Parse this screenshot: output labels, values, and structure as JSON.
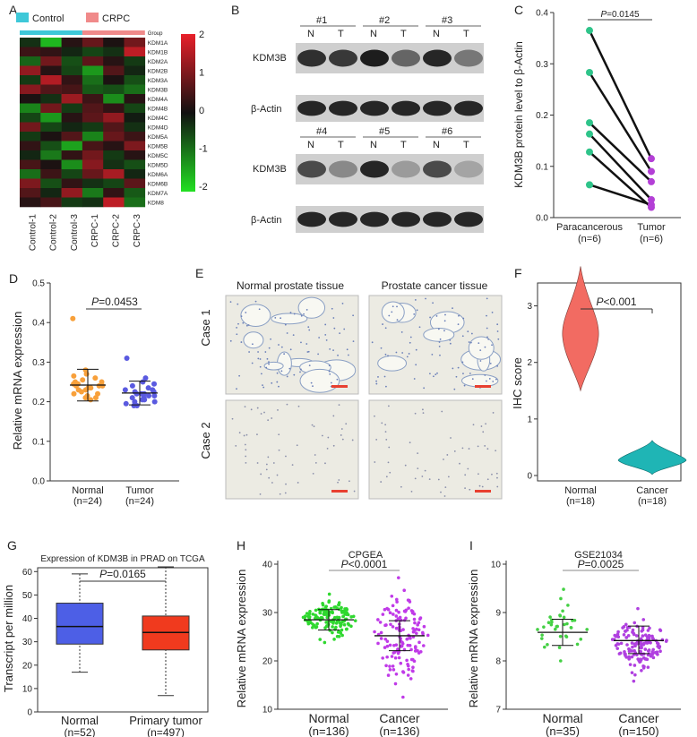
{
  "panels": [
    "A",
    "B",
    "C",
    "D",
    "E",
    "F",
    "G",
    "H",
    "I"
  ],
  "A": {
    "legend": [
      "Control",
      "CRPC"
    ],
    "group_label": "Group",
    "genes": [
      "KDM1A",
      "KDM1B",
      "KDM2A",
      "KDM2B",
      "KDM3A",
      "KDM3B",
      "KDM4A",
      "KDM4B",
      "KDM4C",
      "KDM4D",
      "KDM5A",
      "KDM5B",
      "KDM5C",
      "KDM5D",
      "KDM6A",
      "KDM6B",
      "KDM7A",
      "KDM8"
    ],
    "highlight_gene": "KDM3B",
    "samples": [
      "Control-1",
      "Control-2",
      "Control-3",
      "CRPC-1",
      "CRPC-2",
      "CRPC-3"
    ],
    "scale_ticks": [
      "2",
      "1",
      "0",
      "-1",
      "-2"
    ],
    "colors": {
      "control": "#3EC8D8",
      "crpc": "#F08A8A",
      "high": "#E8202A",
      "low": "#22E022",
      "mid": "#111111"
    },
    "matrix": [
      [
        -0.3,
        -1.6,
        0.2,
        0.8,
        0.1,
        0.9
      ],
      [
        0.4,
        0.3,
        -0.2,
        -0.5,
        -0.3,
        1.6
      ],
      [
        -0.8,
        0.9,
        -0.6,
        0.7,
        0.2,
        -0.4
      ],
      [
        1.2,
        0.2,
        -0.5,
        -1.3,
        0.6,
        -0.2
      ],
      [
        -0.4,
        1.5,
        0.3,
        -0.9,
        0.1,
        -0.6
      ],
      [
        1.1,
        0.6,
        0.5,
        -0.7,
        -0.6,
        -0.9
      ],
      [
        0.1,
        -0.3,
        1.3,
        0.4,
        -1.2,
        0.2
      ],
      [
        -1.1,
        0.9,
        -0.4,
        0.6,
        0.3,
        -0.5
      ],
      [
        -0.5,
        -1.3,
        0.2,
        0.7,
        1.2,
        -0.1
      ],
      [
        0.9,
        -0.5,
        -0.2,
        -0.4,
        0.6,
        -0.3
      ],
      [
        -0.4,
        0.1,
        0.6,
        -1.1,
        0.8,
        0.4
      ],
      [
        0.3,
        -0.6,
        -1.4,
        0.5,
        0.2,
        1.0
      ],
      [
        -0.2,
        -1.0,
        0.3,
        0.9,
        -0.4,
        0.2
      ],
      [
        0.5,
        0.1,
        -1.2,
        1.1,
        -0.3,
        -0.6
      ],
      [
        -0.9,
        0.4,
        -0.5,
        0.8,
        1.4,
        -0.2
      ],
      [
        1.0,
        -0.6,
        0.3,
        -0.3,
        -0.5,
        0.7
      ],
      [
        0.6,
        -0.2,
        1.2,
        -1.0,
        0.3,
        -0.7
      ],
      [
        0.2,
        0.5,
        -0.4,
        -0.3,
        1.6,
        -0.9
      ]
    ]
  },
  "B": {
    "top": {
      "pairs": [
        "#1",
        "#2",
        "#3"
      ],
      "rows": [
        "KDM3B",
        "β-Actin"
      ]
    },
    "bottom": {
      "pairs": [
        "#4",
        "#5",
        "#6"
      ],
      "rows": [
        "KDM3B",
        "β-Actin"
      ]
    },
    "lane_labels": [
      "N",
      "T"
    ],
    "kdm_top_intensity": [
      0.85,
      0.8,
      0.95,
      0.55,
      0.9,
      0.45
    ],
    "kdm_bottom_intensity": [
      0.7,
      0.35,
      0.9,
      0.25,
      0.7,
      0.2
    ]
  },
  "C": {
    "ylabel": "KDM3B protein level to β-Actin",
    "p_label": "P=0.0145",
    "groups": [
      "Paracancerous\n(n=6)",
      "Tumor\n(n=6)"
    ],
    "group1": [
      "Paracancerous",
      "(n=6)"
    ],
    "group2": [
      "Tumor",
      "(n=6)"
    ],
    "yticks": [
      "0.0",
      "0.1",
      "0.2",
      "0.3",
      "0.4"
    ],
    "ylim": [
      0,
      0.4
    ],
    "pairs": [
      [
        0.365,
        0.115
      ],
      [
        0.283,
        0.09
      ],
      [
        0.185,
        0.07
      ],
      [
        0.163,
        0.035
      ],
      [
        0.128,
        0.02
      ],
      [
        0.064,
        0.025
      ]
    ],
    "colors": {
      "para": "#2FC48A",
      "tumor": "#B33FD6"
    }
  },
  "D": {
    "ylabel": "Relative mRNA expression",
    "p_label": "P=0.0453",
    "groups": [
      [
        "Normal",
        "(n=24)"
      ],
      [
        "Tumor",
        "(n=24)"
      ]
    ],
    "yticks": [
      "0.0",
      "0.1",
      "0.2",
      "0.3",
      "0.4",
      "0.5"
    ],
    "ylim": [
      0,
      0.5
    ],
    "normal": {
      "mean": 0.242,
      "sd_hi": 0.282,
      "sd_lo": 0.202,
      "points": [
        0.41,
        0.28,
        0.27,
        0.265,
        0.26,
        0.255,
        0.25,
        0.25,
        0.245,
        0.245,
        0.24,
        0.24,
        0.24,
        0.235,
        0.235,
        0.23,
        0.23,
        0.225,
        0.22,
        0.22,
        0.215,
        0.21,
        0.21,
        0.205
      ]
    },
    "tumor": {
      "mean": 0.222,
      "sd_hi": 0.252,
      "sd_lo": 0.192,
      "points": [
        0.31,
        0.26,
        0.25,
        0.245,
        0.24,
        0.235,
        0.23,
        0.23,
        0.225,
        0.225,
        0.22,
        0.22,
        0.22,
        0.215,
        0.215,
        0.21,
        0.21,
        0.205,
        0.205,
        0.2,
        0.2,
        0.195,
        0.19,
        0.19
      ]
    },
    "colors": {
      "normal": "#F8A03A",
      "tumor": "#5A5AE0"
    }
  },
  "E": {
    "col_titles": [
      "Normal prostate tissue",
      "Prostate cancer tissue"
    ],
    "row_titles": [
      "Case 1",
      "Case 2"
    ]
  },
  "F": {
    "ylabel": "IHC score",
    "p_label": "P<0.001",
    "groups": [
      [
        "Normal",
        "(n=18)"
      ],
      [
        "Cancer",
        "(n=18)"
      ]
    ],
    "yticks": [
      "0",
      "1",
      "2",
      "3"
    ],
    "ylim": [
      0,
      3.5
    ],
    "colors": {
      "normal": "#F26B62",
      "cancer": "#1FB5B5"
    }
  },
  "G": {
    "title": "Expression of KDM3B in PRAD on TCGA",
    "ylabel": "Transcript per million",
    "p_label": "P=0.0165",
    "groups": [
      [
        "Normal",
        "(n=52)"
      ],
      [
        "Primary tumor",
        "(n=497)"
      ]
    ],
    "yticks": [
      "0",
      "10",
      "20",
      "30",
      "40",
      "50",
      "60"
    ],
    "ylim": [
      0,
      67
    ],
    "normal": {
      "min": 17,
      "q1": 29,
      "median": 36.5,
      "q3": 46.5,
      "max": 59
    },
    "tumor": {
      "min": 7,
      "q1": 26.5,
      "median": 34,
      "q3": 41,
      "max": 62
    },
    "colors": {
      "normal": "#4D5FE6",
      "tumor": "#F03A1E"
    }
  },
  "H": {
    "title": "CPGEA",
    "ylabel": "Relative mRNA expression",
    "p_label": "P<0.0001",
    "groups": [
      [
        "Normal",
        "(n=136)"
      ],
      [
        "Cancer",
        "(n=136)"
      ]
    ],
    "yticks": [
      "10",
      "20",
      "30",
      "40"
    ],
    "ylim": [
      10,
      40
    ],
    "normal": {
      "mean": 28.5,
      "sd_hi": 30.6,
      "sd_lo": 26.4,
      "max": 33.8,
      "min": 23.8
    },
    "cancer": {
      "mean": 25.2,
      "sd_hi": 28.3,
      "sd_lo": 22.1,
      "max": 37.2,
      "min": 12.5
    },
    "colors": {
      "normal": "#2FD82F",
      "cancer": "#C03AE8"
    }
  },
  "I": {
    "title": "GSE21034",
    "ylabel": "Relative mRNA expression",
    "p_label": "P=0.0025",
    "groups": [
      [
        "Normal",
        "(n=35)"
      ],
      [
        "Cancer",
        "(n=150)"
      ]
    ],
    "yticks": [
      "7",
      "8",
      "9",
      "10"
    ],
    "ylim": [
      7,
      10
    ],
    "normal": {
      "mean": 8.59,
      "sd_hi": 8.86,
      "sd_lo": 8.32,
      "max": 9.48,
      "min": 8.0
    },
    "cancer": {
      "mean": 8.42,
      "sd_hi": 8.72,
      "sd_lo": 8.15,
      "max": 9.08,
      "min": 7.58
    },
    "colors": {
      "normal": "#44D044",
      "cancer": "#B040E0"
    }
  }
}
